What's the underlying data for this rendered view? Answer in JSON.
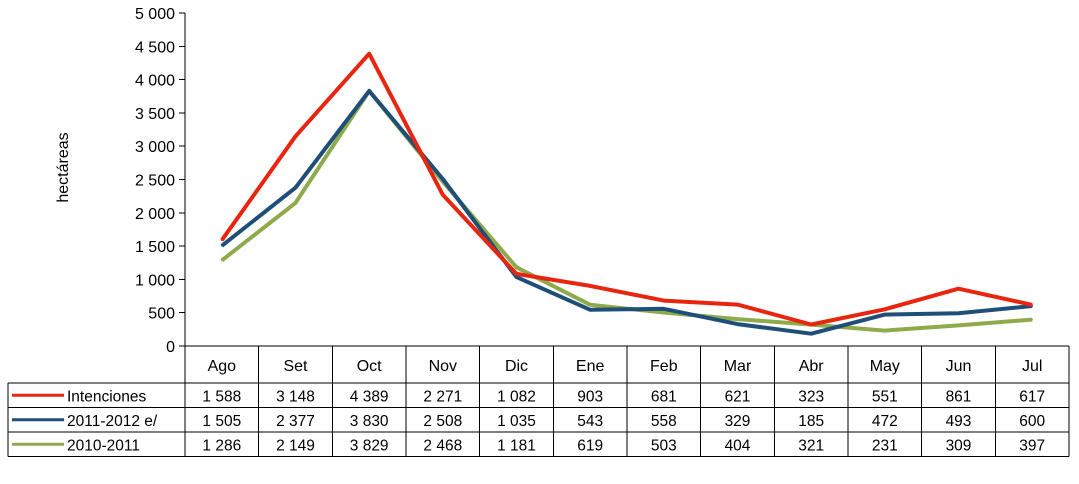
{
  "chart_data": {
    "type": "line",
    "title": "",
    "xlabel": "",
    "ylabel": "hectáreas",
    "ylim": [
      0,
      5000
    ],
    "yticks": [
      "0",
      "500",
      "1 000",
      "1 500",
      "2 000",
      "2 500",
      "3 000",
      "3 500",
      "4 000",
      "4 500",
      "5 000"
    ],
    "grid": false,
    "legend": "data-table",
    "categories": [
      "Ago",
      "Set",
      "Oct",
      "Nov",
      "Dic",
      "Ene",
      "Feb",
      "Mar",
      "Abr",
      "May",
      "Jun",
      "Jul"
    ],
    "series": [
      {
        "name": "Intenciones",
        "color": "#e8260f",
        "values": [
          1588,
          3148,
          4389,
          2271,
          1082,
          903,
          681,
          621,
          323,
          551,
          861,
          617
        ],
        "labels": [
          "1 588",
          "3 148",
          "4 389",
          "2 271",
          "1 082",
          "903",
          "681",
          "621",
          "323",
          "551",
          "861",
          "617"
        ]
      },
      {
        "name": "2011-2012 e/",
        "color": "#1f4e79",
        "values": [
          1505,
          2377,
          3830,
          2508,
          1035,
          543,
          558,
          329,
          185,
          472,
          493,
          600
        ],
        "labels": [
          "1 505",
          "2 377",
          "3 830",
          "2 508",
          "1 035",
          "543",
          "558",
          "329",
          "185",
          "472",
          "493",
          "600"
        ]
      },
      {
        "name": "2010-2011",
        "color": "#8faa4b",
        "values": [
          1286,
          2149,
          3829,
          2468,
          1181,
          619,
          503,
          404,
          321,
          231,
          309,
          397
        ],
        "labels": [
          "1 286",
          "2 149",
          "3 829",
          "2 468",
          "1 181",
          "619",
          "503",
          "404",
          "321",
          "231",
          "309",
          "397"
        ]
      }
    ]
  }
}
